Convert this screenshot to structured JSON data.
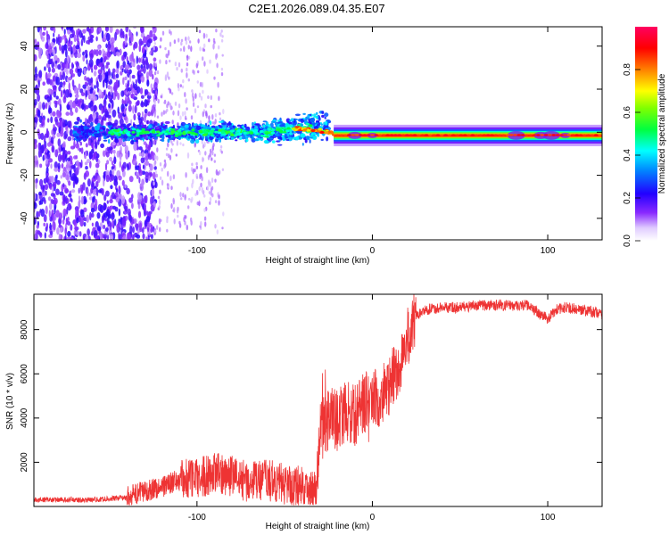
{
  "title": "C2E1.2026.089.04.35.E07",
  "chart_data": [
    {
      "type": "heatmap",
      "title": "C2E1.2026.089.04.35.E07",
      "xlabel": "Height of straight line (km)",
      "ylabel": "Frequency (Hz)",
      "xlim": [
        -193,
        131
      ],
      "ylim": [
        -50,
        49
      ],
      "xticks": [
        -100,
        0,
        100
      ],
      "yticks": [
        -40,
        -20,
        0,
        20,
        40
      ],
      "colorbar": {
        "label": "Normalized spectral amplitude",
        "range": [
          0,
          1
        ],
        "ticks": [
          0.0,
          0.2,
          0.4,
          0.6,
          0.8
        ],
        "colors": [
          "#ffffff",
          "#cc99ff",
          "#6600ff",
          "#0000ff",
          "#00ffff",
          "#00ff00",
          "#ffff00",
          "#ff8000",
          "#ff0000",
          "#ff0080"
        ]
      },
      "description_points": [
        {
          "x": -150,
          "freq_spread": 48,
          "amp": 0.15
        },
        {
          "x": -100,
          "freq_spread": 6,
          "amp": 0.35
        },
        {
          "x": -45,
          "freq_spread": 8,
          "amp": 0.45
        },
        {
          "x": -25,
          "freq_center": 0,
          "amp": 0.85
        },
        {
          "x": 131,
          "freq_center": -2,
          "amp": 0.95
        }
      ]
    },
    {
      "type": "line",
      "xlabel": "Height of straight line (km)",
      "ylabel": "SNR (10 * v/v)",
      "xlim": [
        -193,
        131
      ],
      "ylim": [
        0,
        9600
      ],
      "xticks": [
        -100,
        0,
        100
      ],
      "yticks": [
        2000,
        4000,
        6000,
        8000
      ],
      "color": "#ee3333",
      "series": [
        {
          "name": "SNR",
          "x": [
            -193,
            -160,
            -140,
            -130,
            -120,
            -110,
            -100,
            -90,
            -80,
            -70,
            -60,
            -50,
            -40,
            -32,
            -30,
            -25,
            -20,
            -15,
            -10,
            -5,
            0,
            5,
            10,
            15,
            20,
            25,
            30,
            40,
            50,
            60,
            70,
            80,
            90,
            95,
            100,
            105,
            110,
            120,
            131
          ],
          "y": [
            300,
            300,
            400,
            700,
            900,
            1200,
            1300,
            1500,
            1400,
            1100,
            1200,
            1000,
            900,
            700,
            3300,
            4000,
            3900,
            4300,
            4100,
            4700,
            4900,
            4900,
            5600,
            6200,
            7600,
            8600,
            8900,
            9000,
            9000,
            9100,
            9100,
            9100,
            9100,
            8700,
            8500,
            8900,
            9000,
            8900,
            8700
          ]
        }
      ]
    }
  ]
}
